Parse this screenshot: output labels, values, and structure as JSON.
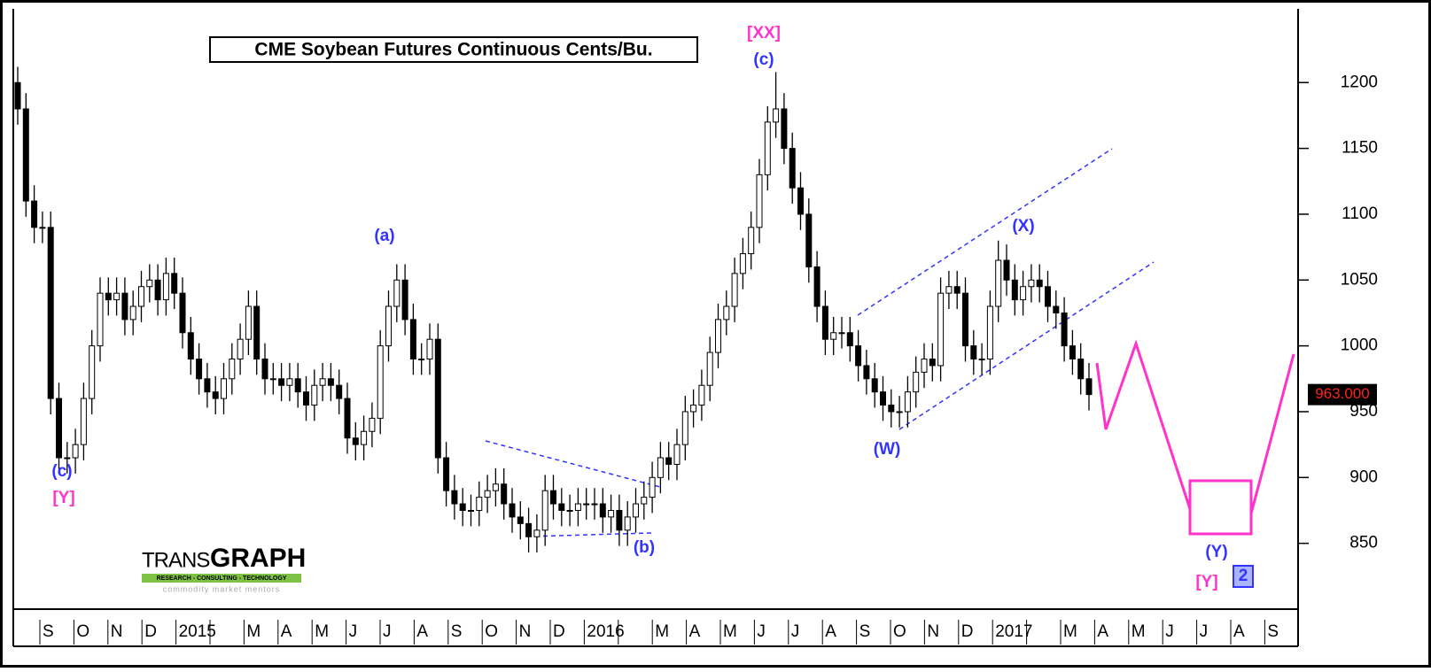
{
  "chart_data": {
    "type": "candlestick",
    "title": "CME Soybean Futures Continuous Cents/Bu.",
    "categories": [
      "S",
      "O",
      "N",
      "D",
      "2015",
      null,
      "M",
      "A",
      "M",
      "J",
      "J",
      "A",
      "S",
      "O",
      "N",
      "D",
      "2016",
      null,
      "M",
      "A",
      "M",
      "J",
      "J",
      "A",
      "S",
      "O",
      "N",
      "D",
      "2017",
      null,
      "M",
      "A",
      "M",
      "J",
      "J",
      "A",
      "S"
    ],
    "ylim": [
      800,
      1256
    ],
    "yticks": [
      850,
      900,
      950,
      1000,
      1050,
      1100,
      1150,
      1200
    ],
    "up_color": "#ffffff",
    "down_color": "#000000",
    "open": [
      1200,
      1180,
      1110,
      1090,
      1090,
      960,
      915,
      915,
      925,
      960,
      1000,
      1040,
      1035,
      1040,
      1020,
      1030,
      1045,
      1050,
      1035,
      1055,
      1040,
      1010,
      990,
      975,
      965,
      960,
      975,
      990,
      1005,
      1030,
      990,
      975,
      975,
      970,
      975,
      965,
      955,
      970,
      975,
      970,
      960,
      930,
      925,
      935,
      945,
      1000,
      1030,
      1050,
      1020,
      990,
      990,
      1005,
      915,
      890,
      880,
      875,
      875,
      885,
      890,
      895,
      880,
      870,
      865,
      855,
      860,
      890,
      880,
      875,
      875,
      880,
      880,
      880,
      870,
      875,
      860,
      870,
      880,
      885,
      900,
      915,
      910,
      925,
      950,
      955,
      970,
      995,
      1020,
      1030,
      1055,
      1070,
      1090,
      1130,
      1170,
      1180,
      1150,
      1120,
      1100,
      1060,
      1030,
      1005,
      1010,
      1010,
      1000,
      985,
      975,
      965,
      955,
      950,
      950,
      965,
      980,
      990,
      985,
      1040,
      1045,
      1040,
      1000,
      990,
      990,
      1030,
      1065,
      1050,
      1035,
      1045,
      1050,
      1045,
      1030,
      1025,
      1000,
      990,
      975
    ],
    "high": [
      1212,
      1192,
      1122,
      1102,
      1102,
      972,
      927,
      937,
      972,
      1012,
      1052,
      1052,
      1052,
      1052,
      1042,
      1057,
      1062,
      1062,
      1067,
      1067,
      1052,
      1022,
      1002,
      987,
      977,
      987,
      1002,
      1017,
      1042,
      1042,
      1002,
      987,
      987,
      987,
      987,
      977,
      982,
      987,
      987,
      982,
      972,
      942,
      947,
      957,
      1012,
      1042,
      1062,
      1062,
      1032,
      1002,
      1017,
      1017,
      927,
      902,
      892,
      887,
      897,
      902,
      907,
      907,
      892,
      882,
      877,
      872,
      902,
      902,
      892,
      887,
      892,
      892,
      892,
      892,
      887,
      887,
      882,
      892,
      897,
      912,
      927,
      927,
      937,
      962,
      967,
      982,
      1007,
      1032,
      1042,
      1067,
      1082,
      1102,
      1142,
      1182,
      1208,
      1192,
      1162,
      1132,
      1112,
      1072,
      1042,
      1022,
      1022,
      1022,
      1012,
      997,
      987,
      977,
      967,
      962,
      977,
      992,
      1002,
      1002,
      1052,
      1057,
      1057,
      1052,
      1012,
      1002,
      1042,
      1080,
      1077,
      1062,
      1057,
      1062,
      1062,
      1057,
      1042,
      1037,
      1012,
      1002,
      987
    ],
    "low": [
      1168,
      1098,
      1078,
      1078,
      948,
      903,
      903,
      903,
      913,
      948,
      988,
      1023,
      1023,
      1008,
      1008,
      1018,
      1033,
      1023,
      1023,
      1028,
      998,
      978,
      963,
      953,
      948,
      948,
      963,
      978,
      993,
      978,
      963,
      963,
      958,
      958,
      953,
      943,
      943,
      958,
      958,
      948,
      918,
      913,
      913,
      923,
      933,
      988,
      1018,
      1008,
      978,
      978,
      978,
      903,
      878,
      868,
      863,
      863,
      863,
      873,
      878,
      868,
      858,
      853,
      843,
      843,
      848,
      868,
      863,
      863,
      863,
      868,
      868,
      858,
      858,
      848,
      848,
      858,
      868,
      873,
      888,
      898,
      898,
      913,
      938,
      943,
      958,
      983,
      1008,
      1018,
      1043,
      1058,
      1078,
      1118,
      1158,
      1138,
      1108,
      1088,
      1048,
      1018,
      993,
      993,
      998,
      988,
      973,
      963,
      953,
      943,
      938,
      938,
      938,
      953,
      968,
      973,
      973,
      1028,
      1028,
      988,
      978,
      978,
      978,
      1018,
      1038,
      1023,
      1023,
      1033,
      1033,
      1018,
      1013,
      988,
      978,
      963,
      951
    ],
    "close": [
      1180,
      1110,
      1090,
      1090,
      960,
      915,
      915,
      925,
      960,
      1000,
      1040,
      1035,
      1040,
      1020,
      1030,
      1045,
      1050,
      1035,
      1055,
      1040,
      1010,
      990,
      975,
      965,
      960,
      975,
      990,
      1005,
      1030,
      990,
      975,
      975,
      970,
      975,
      965,
      955,
      970,
      975,
      970,
      960,
      930,
      925,
      935,
      945,
      1000,
      1030,
      1050,
      1020,
      990,
      990,
      1005,
      915,
      890,
      880,
      875,
      875,
      885,
      890,
      895,
      880,
      870,
      865,
      855,
      860,
      890,
      880,
      875,
      875,
      880,
      880,
      880,
      870,
      875,
      860,
      870,
      880,
      885,
      900,
      915,
      910,
      925,
      950,
      955,
      970,
      995,
      1020,
      1030,
      1055,
      1070,
      1090,
      1130,
      1170,
      1180,
      1150,
      1120,
      1100,
      1060,
      1030,
      1005,
      1010,
      1010,
      1000,
      985,
      975,
      965,
      955,
      950,
      950,
      965,
      980,
      990,
      985,
      1040,
      1045,
      1040,
      1000,
      990,
      990,
      1030,
      1065,
      1050,
      1035,
      1045,
      1050,
      1045,
      1030,
      1025,
      1000,
      990,
      975,
      963
    ],
    "last_price": {
      "value": 963,
      "label": "963.000"
    },
    "annotations": [
      {
        "text": "(c)",
        "color": "#3333ff"
      },
      {
        "text": "[Y]",
        "color": "#ff33cc"
      },
      {
        "text": "(a)",
        "color": "#3333ff"
      },
      {
        "text": "(b)",
        "color": "#3333ff"
      },
      {
        "text": "[XX]",
        "color": "#ff33cc"
      },
      {
        "text": "(c)",
        "color": "#3333ff"
      },
      {
        "text": "(W)",
        "color": "#3333ff"
      },
      {
        "text": "(X)",
        "color": "#3333ff"
      },
      {
        "text": "(Y)",
        "color": "#3333ff"
      },
      {
        "text": "[Y]",
        "color": "#ff33cc"
      },
      {
        "text": "2",
        "color": "#3333ff"
      }
    ],
    "logo": {
      "name_light": "TRANS",
      "name_bold": "GRAPH",
      "tagline": "RESEARCH - CONSULTING - TECHNOLOGY",
      "motto": "commodity market mentors"
    }
  }
}
